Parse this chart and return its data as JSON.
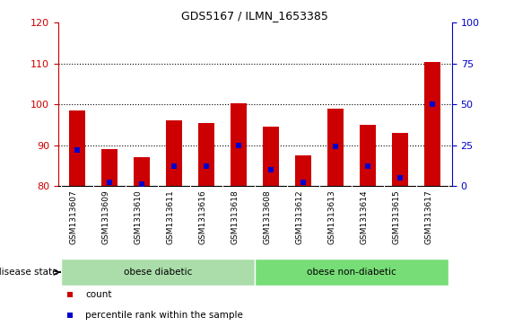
{
  "title": "GDS5167 / ILMN_1653385",
  "samples": [
    "GSM1313607",
    "GSM1313609",
    "GSM1313610",
    "GSM1313611",
    "GSM1313616",
    "GSM1313618",
    "GSM1313608",
    "GSM1313612",
    "GSM1313613",
    "GSM1313614",
    "GSM1313615",
    "GSM1313617"
  ],
  "count_values": [
    98.5,
    89.0,
    87.0,
    96.0,
    95.5,
    100.3,
    94.5,
    87.5,
    99.0,
    95.0,
    93.0,
    110.5
  ],
  "percentile_values": [
    22,
    2,
    1,
    12,
    12,
    25,
    10,
    2,
    24,
    12,
    5,
    50
  ],
  "bar_bottom": 80,
  "ylim_left": [
    80,
    120
  ],
  "ylim_right": [
    0,
    100
  ],
  "yticks_left": [
    80,
    90,
    100,
    110,
    120
  ],
  "yticks_right": [
    0,
    25,
    50,
    75,
    100
  ],
  "bar_color": "#cc0000",
  "marker_color": "#0000cc",
  "xticklabel_bg": "#cccccc",
  "group_colors": [
    "#aaddaa",
    "#77dd77"
  ],
  "group_labels": [
    "obese diabetic",
    "obese non-diabetic"
  ],
  "group_ranges": [
    [
      0,
      6
    ],
    [
      6,
      12
    ]
  ],
  "disease_state_label": "disease state",
  "legend_labels": [
    "count",
    "percentile rank within the sample"
  ],
  "legend_colors": [
    "#cc0000",
    "#0000cc"
  ],
  "bar_width": 0.5,
  "n_samples": 12,
  "grid_yticks": [
    90,
    100,
    110
  ]
}
